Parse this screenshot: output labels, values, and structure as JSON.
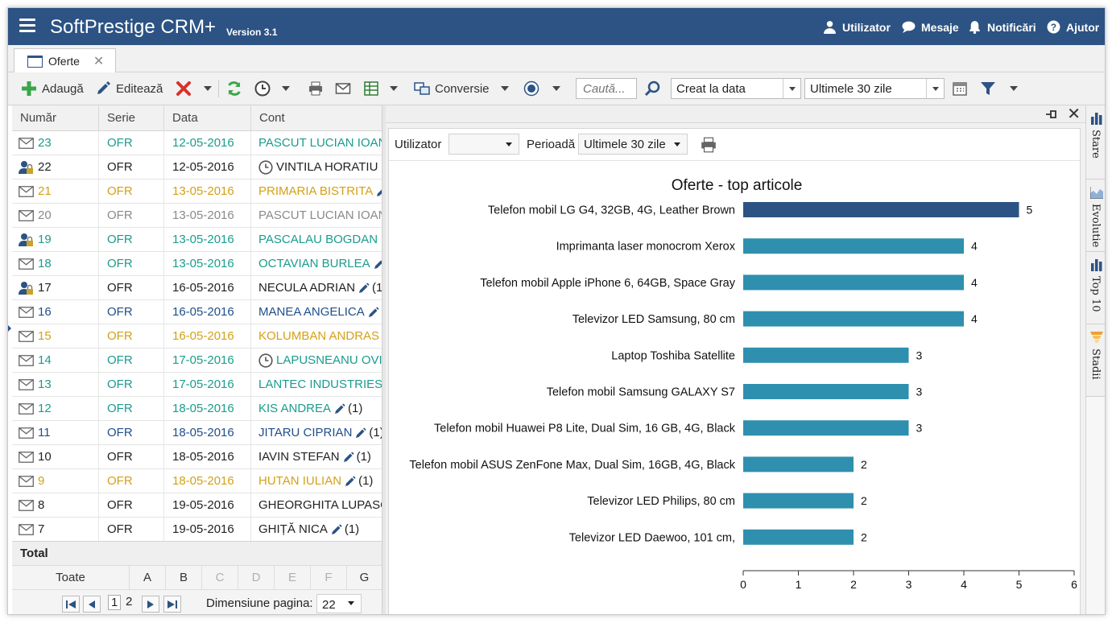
{
  "header": {
    "title": "SoftPrestige CRM+",
    "version": "Version 3.1",
    "nav": [
      {
        "label": "Utilizator",
        "icon": "user-icon"
      },
      {
        "label": "Mesaje",
        "icon": "chat-icon"
      },
      {
        "label": "Notificări",
        "icon": "bell-icon"
      },
      {
        "label": "Ajutor",
        "icon": "help-icon"
      }
    ]
  },
  "tab": {
    "label": "Oferte"
  },
  "toolbar": {
    "add": "Adaugă",
    "edit": "Editează",
    "conversion": "Conversie",
    "search_placeholder": "Caută...",
    "date_field": "Creat la data",
    "period": "Ultimele 30 zile"
  },
  "grid": {
    "columns": [
      "Număr",
      "Serie",
      "Data",
      "Cont"
    ],
    "rows": [
      {
        "num": "23",
        "serie": "OFR",
        "data": "12-05-2016",
        "cont": "PASCUT LUCIAN IOAN",
        "color": "#1a9c8c",
        "icon": "envelope",
        "clock": false,
        "pen": false,
        "count": ""
      },
      {
        "num": "22",
        "serie": "OFR",
        "data": "12-05-2016",
        "cont": "VINTILA HORATIU",
        "color": "#222222",
        "icon": "user-lock",
        "clock": true,
        "pen": true,
        "count": ""
      },
      {
        "num": "21",
        "serie": "OFR",
        "data": "13-05-2016",
        "cont": "PRIMARIA BISTRITA",
        "color": "#d4a017",
        "icon": "envelope",
        "clock": false,
        "pen": true,
        "count": ""
      },
      {
        "num": "20",
        "serie": "OFR",
        "data": "13-05-2016",
        "cont": "PASCUT LUCIAN IOAN",
        "color": "#8a8a8a",
        "icon": "envelope",
        "clock": false,
        "pen": false,
        "count": ""
      },
      {
        "num": "19",
        "serie": "OFR",
        "data": "13-05-2016",
        "cont": "PASCALAU BOGDAN",
        "color": "#1a9c8c",
        "icon": "user-lock",
        "clock": false,
        "pen": true,
        "count": ""
      },
      {
        "num": "18",
        "serie": "OFR",
        "data": "13-05-2016",
        "cont": "OCTAVIAN BURLEA",
        "color": "#1a9c8c",
        "icon": "envelope",
        "clock": false,
        "pen": true,
        "count": ""
      },
      {
        "num": "17",
        "serie": "OFR",
        "data": "16-05-2016",
        "cont": "NECULA ADRIAN",
        "color": "#222222",
        "icon": "user-lock",
        "clock": false,
        "pen": true,
        "count": "(1)"
      },
      {
        "num": "16",
        "serie": "OFR",
        "data": "16-05-2016",
        "cont": "MANEA ANGELICA",
        "color": "#1f4e8a",
        "icon": "envelope",
        "clock": false,
        "pen": true,
        "count": "("
      },
      {
        "num": "15",
        "serie": "OFR",
        "data": "16-05-2016",
        "cont": "KOLUMBAN ANDRAS",
        "color": "#d4a017",
        "icon": "envelope",
        "clock": false,
        "pen": true,
        "count": ""
      },
      {
        "num": "14",
        "serie": "OFR",
        "data": "17-05-2016",
        "cont": "LAPUSNEANU OVID",
        "color": "#1a9c8c",
        "icon": "envelope",
        "clock": true,
        "pen": false,
        "count": ""
      },
      {
        "num": "13",
        "serie": "OFR",
        "data": "17-05-2016",
        "cont": "LANTEC INDUSTRIES SI",
        "color": "#1a9c8c",
        "icon": "envelope",
        "clock": false,
        "pen": false,
        "count": ""
      },
      {
        "num": "12",
        "serie": "OFR",
        "data": "18-05-2016",
        "cont": "KIS ANDREA",
        "color": "#1a9c8c",
        "icon": "envelope",
        "clock": false,
        "pen": true,
        "count": "(1)"
      },
      {
        "num": "11",
        "serie": "OFR",
        "data": "18-05-2016",
        "cont": "JITARU CIPRIAN",
        "color": "#1f4e8a",
        "icon": "envelope",
        "clock": false,
        "pen": true,
        "count": "(1)"
      },
      {
        "num": "10",
        "serie": "OFR",
        "data": "18-05-2016",
        "cont": "IAVIN STEFAN",
        "color": "#222222",
        "icon": "envelope",
        "clock": false,
        "pen": true,
        "count": "(1)"
      },
      {
        "num": "9",
        "serie": "OFR",
        "data": "18-05-2016",
        "cont": "HUTAN IULIAN",
        "color": "#d4a017",
        "icon": "envelope",
        "clock": false,
        "pen": true,
        "count": "(1)"
      },
      {
        "num": "8",
        "serie": "OFR",
        "data": "19-05-2016",
        "cont": "GHEORGHITA LUPASCU",
        "color": "#222222",
        "icon": "envelope",
        "clock": false,
        "pen": false,
        "count": ""
      },
      {
        "num": "7",
        "serie": "OFR",
        "data": "19-05-2016",
        "cont": "GHIȚĂ NICA",
        "color": "#222222",
        "icon": "envelope",
        "clock": false,
        "pen": true,
        "count": "(1)"
      }
    ],
    "total_label": "Total",
    "letters": [
      "Toate",
      "A",
      "B",
      "C",
      "D",
      "E",
      "F",
      "G"
    ],
    "letters_enabled": [
      true,
      true,
      true,
      false,
      false,
      false,
      false,
      true
    ],
    "pager": {
      "pages": [
        "1",
        "2"
      ],
      "current": "1",
      "page_size_label": "Dimensiune pagina:",
      "page_size": "22"
    }
  },
  "panel": {
    "user_label": "Utilizator",
    "user_value": "",
    "period_label": "Perioadă",
    "period_value": "Ultimele 30 zile"
  },
  "side_tabs": [
    {
      "label": "Stare",
      "icon": "bar-chart-icon"
    },
    {
      "label": "Evolutie",
      "icon": "area-chart-icon"
    },
    {
      "label": "Top 10",
      "icon": "bar-chart-icon"
    },
    {
      "label": "Stadii",
      "icon": "funnel-icon"
    }
  ],
  "colors": {
    "header": "#2c5383",
    "bar": "#2f8fae",
    "bar_highlight": "#2c5383"
  },
  "chart_data": {
    "type": "bar",
    "orientation": "horizontal",
    "title": "Oferte - top articole",
    "categories": [
      "Telefon mobil LG G4, 32GB, 4G, Leather Brown",
      "Imprimanta laser monocrom Xerox",
      "Telefon mobil Apple iPhone 6, 64GB, Space Gray",
      "Televizor LED Samsung, 80 cm",
      "Laptop Toshiba Satellite",
      "Telefon mobil Samsung GALAXY S7",
      "Telefon mobil Huawei P8 Lite, Dual Sim, 16 GB, 4G, Black",
      "Telefon mobil ASUS ZenFone Max, Dual Sim, 16GB, 4G, Black",
      "Televizor LED Philips, 80 cm",
      "Televizor LED Daewoo, 101 cm,"
    ],
    "values": [
      5,
      4,
      4,
      4,
      3,
      3,
      3,
      2,
      2,
      2
    ],
    "xlim": [
      0,
      6
    ],
    "xticks": [
      0,
      1,
      2,
      3,
      4,
      5,
      6
    ],
    "highlighted_index": 0,
    "grid": false,
    "legend": "none"
  }
}
